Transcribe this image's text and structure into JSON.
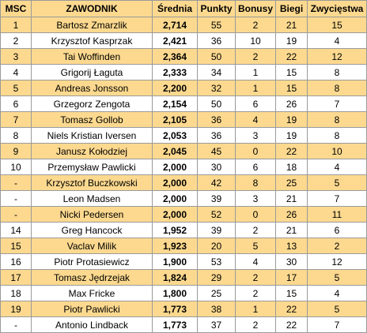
{
  "headers": [
    "MSC",
    "ZAWODNIK",
    "Średnia",
    "Punkty",
    "Bonusy",
    "Biegi",
    "Zwycięstwa"
  ],
  "rows": [
    {
      "msc": "1",
      "name": "Bartosz Zmarzlik",
      "avg": "2,714",
      "pts": "55",
      "bonus": "2",
      "heats": "21",
      "wins": "15"
    },
    {
      "msc": "2",
      "name": "Krzysztof Kasprzak",
      "avg": "2,421",
      "pts": "36",
      "bonus": "10",
      "heats": "19",
      "wins": "4"
    },
    {
      "msc": "3",
      "name": "Tai Woffinden",
      "avg": "2,364",
      "pts": "50",
      "bonus": "2",
      "heats": "22",
      "wins": "12"
    },
    {
      "msc": "4",
      "name": "Grigorij Łaguta",
      "avg": "2,333",
      "pts": "34",
      "bonus": "1",
      "heats": "15",
      "wins": "8"
    },
    {
      "msc": "5",
      "name": "Andreas Jonsson",
      "avg": "2,200",
      "pts": "32",
      "bonus": "1",
      "heats": "15",
      "wins": "8"
    },
    {
      "msc": "6",
      "name": "Grzegorz Zengota",
      "avg": "2,154",
      "pts": "50",
      "bonus": "6",
      "heats": "26",
      "wins": "7"
    },
    {
      "msc": "7",
      "name": "Tomasz Gollob",
      "avg": "2,105",
      "pts": "36",
      "bonus": "4",
      "heats": "19",
      "wins": "8"
    },
    {
      "msc": "8",
      "name": "Niels Kristian Iversen",
      "avg": "2,053",
      "pts": "36",
      "bonus": "3",
      "heats": "19",
      "wins": "8"
    },
    {
      "msc": "9",
      "name": "Janusz Kołodziej",
      "avg": "2,045",
      "pts": "45",
      "bonus": "0",
      "heats": "22",
      "wins": "10"
    },
    {
      "msc": "10",
      "name": "Przemysław Pawlicki",
      "avg": "2,000",
      "pts": "30",
      "bonus": "6",
      "heats": "18",
      "wins": "4"
    },
    {
      "msc": "-",
      "name": "Krzysztof Buczkowski",
      "avg": "2,000",
      "pts": "42",
      "bonus": "8",
      "heats": "25",
      "wins": "5"
    },
    {
      "msc": "-",
      "name": "Leon Madsen",
      "avg": "2,000",
      "pts": "39",
      "bonus": "3",
      "heats": "21",
      "wins": "7"
    },
    {
      "msc": "-",
      "name": "Nicki Pedersen",
      "avg": "2,000",
      "pts": "52",
      "bonus": "0",
      "heats": "26",
      "wins": "11"
    },
    {
      "msc": "14",
      "name": "Greg Hancock",
      "avg": "1,952",
      "pts": "39",
      "bonus": "2",
      "heats": "21",
      "wins": "6"
    },
    {
      "msc": "15",
      "name": "Vaclav Milik",
      "avg": "1,923",
      "pts": "20",
      "bonus": "5",
      "heats": "13",
      "wins": "2"
    },
    {
      "msc": "16",
      "name": "Piotr Protasiewicz",
      "avg": "1,900",
      "pts": "53",
      "bonus": "4",
      "heats": "30",
      "wins": "12"
    },
    {
      "msc": "17",
      "name": "Tomasz Jędrzejak",
      "avg": "1,824",
      "pts": "29",
      "bonus": "2",
      "heats": "17",
      "wins": "5"
    },
    {
      "msc": "18",
      "name": "Max Fricke",
      "avg": "1,800",
      "pts": "25",
      "bonus": "2",
      "heats": "15",
      "wins": "4"
    },
    {
      "msc": "19",
      "name": "Piotr Pawlicki",
      "avg": "1,773",
      "pts": "38",
      "bonus": "1",
      "heats": "22",
      "wins": "5"
    },
    {
      "msc": "-",
      "name": "Antonio Lindback",
      "avg": "1,773",
      "pts": "37",
      "bonus": "2",
      "heats": "22",
      "wins": "7"
    }
  ],
  "colors": {
    "band": "#fcd98f",
    "plain": "#ffffff",
    "grid": "#9a9a9a"
  }
}
